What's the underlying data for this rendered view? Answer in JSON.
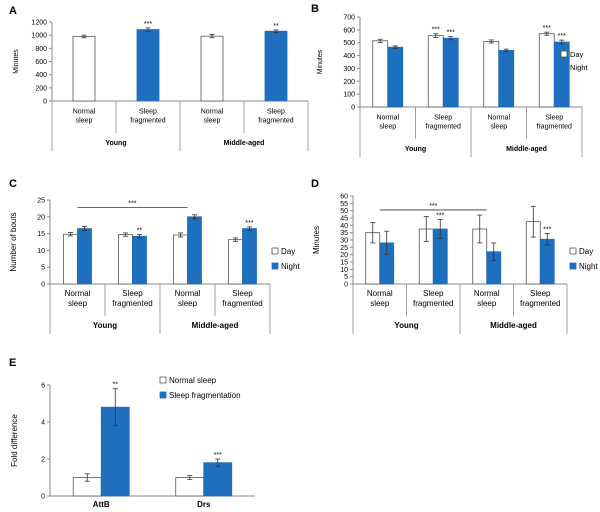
{
  "colors": {
    "day": "#ffffff",
    "night": "#1f6fbf",
    "bar_edge": "#555555",
    "axis": "#8a8a8a"
  },
  "chart_data": [
    {
      "panel": "A",
      "type": "bar",
      "title": "",
      "ylabel": "Minutes",
      "ylim": [
        0,
        1200
      ],
      "yticks": [
        0,
        200,
        400,
        600,
        800,
        1000,
        1200
      ],
      "categories": [
        "Normal sleep",
        "Sleep fragmented",
        "Normal sleep",
        "Sleep fragmented"
      ],
      "groups": [
        "Young",
        "Middle-aged"
      ],
      "legend": [],
      "series": [
        {
          "name": "",
          "values": [
            980,
            1085,
            985,
            1060
          ],
          "errors": [
            20,
            25,
            25,
            20
          ],
          "fills": [
            "day",
            "night",
            "day",
            "night"
          ],
          "sig": [
            "",
            "***",
            "",
            "**"
          ]
        }
      ]
    },
    {
      "panel": "B",
      "type": "bar",
      "title": "",
      "ylabel": "Minutes",
      "ylim": [
        0,
        700
      ],
      "yticks": [
        0,
        100,
        200,
        300,
        400,
        500,
        600,
        700
      ],
      "categories": [
        "Normal sleep",
        "Sleep fragmented",
        "Normal sleep",
        "Sleep fragmented"
      ],
      "groups": [
        "Young",
        "Middle-aged"
      ],
      "legend": [
        "Day",
        "Night"
      ],
      "series": [
        {
          "name": "Day",
          "values": [
            515,
            555,
            510,
            570
          ],
          "errors": [
            12,
            15,
            12,
            12
          ],
          "sig": [
            "",
            "***",
            "",
            "***"
          ]
        },
        {
          "name": "Night",
          "values": [
            465,
            535,
            440,
            505
          ],
          "errors": [
            10,
            12,
            10,
            15
          ],
          "sig": [
            "",
            "***",
            "",
            "***"
          ]
        }
      ]
    },
    {
      "panel": "C",
      "type": "bar",
      "title": "",
      "ylabel": "Number of bouts",
      "ylim": [
        0,
        25
      ],
      "yticks": [
        0,
        5,
        10,
        15,
        20,
        25
      ],
      "categories": [
        "Normal sleep",
        "Sleep fragmented",
        "Normal sleep",
        "Sleep fragmented"
      ],
      "groups": [
        "Young",
        "Middle-aged"
      ],
      "legend": [
        "Day",
        "Night"
      ],
      "series": [
        {
          "name": "Day",
          "values": [
            14.8,
            14.7,
            14.6,
            13.2
          ],
          "errors": [
            0.5,
            0.5,
            0.6,
            0.5
          ],
          "sig": [
            "",
            "",
            "",
            ""
          ]
        },
        {
          "name": "Night",
          "values": [
            16.5,
            14.2,
            20.0,
            16.5
          ],
          "errors": [
            0.6,
            0.5,
            0.6,
            0.5
          ],
          "sig": [
            "",
            "**",
            "",
            "***"
          ]
        }
      ],
      "bracket": {
        "label": "***",
        "value": 22.8
      }
    },
    {
      "panel": "D",
      "type": "bar",
      "title": "",
      "ylabel": "Minutes",
      "ylim": [
        0,
        60
      ],
      "yticks": [
        0,
        5,
        10,
        15,
        20,
        25,
        30,
        35,
        40,
        45,
        50,
        55,
        60
      ],
      "categories": [
        "Normal sleep",
        "Sleep fragmented",
        "Normal sleep",
        "Sleep fragmented"
      ],
      "groups": [
        "Young",
        "Middle-aged"
      ],
      "legend": [
        "Day",
        "Night"
      ],
      "series": [
        {
          "name": "Day",
          "values": [
            35,
            37.5,
            37.5,
            42.5
          ],
          "errors": [
            7,
            8.5,
            9.5,
            10.5
          ],
          "sig": [
            "",
            "",
            "",
            ""
          ]
        },
        {
          "name": "Night",
          "values": [
            28,
            37.5,
            22,
            30.5
          ],
          "errors": [
            8,
            6.5,
            6,
            4
          ],
          "sig": [
            "",
            "***",
            "",
            "***"
          ]
        }
      ],
      "bracket": {
        "label": "***",
        "value": 50.5
      }
    },
    {
      "panel": "E",
      "type": "bar",
      "title": "",
      "ylabel": "Fold difference",
      "ylim": [
        0,
        6
      ],
      "yticks": [
        0,
        2,
        4,
        6
      ],
      "categories": [
        "AttB",
        "Drs"
      ],
      "groups": [],
      "legend": [
        "Normal sleep",
        "Sleep fragmentation"
      ],
      "series": [
        {
          "name": "Normal sleep",
          "values": [
            1.0,
            1.0
          ],
          "errors": [
            0.2,
            0.1
          ],
          "sig": [
            "",
            ""
          ]
        },
        {
          "name": "Sleep fragmentation",
          "values": [
            4.8,
            1.8
          ],
          "errors": [
            1.0,
            0.2
          ],
          "sig": [
            "**",
            "***"
          ]
        }
      ]
    }
  ]
}
